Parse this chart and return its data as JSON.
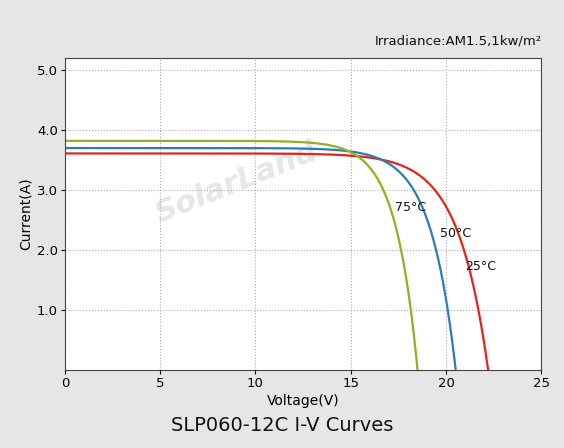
{
  "title": "SLP060-12C I-V Curves",
  "irradiance_label": "Irradiance:AM1.5,1kw/m²",
  "xlabel": "Voltage(V)",
  "ylabel": "Current(A)",
  "xlim": [
    0,
    25
  ],
  "ylim": [
    0,
    5.2
  ],
  "xticks": [
    0,
    5,
    10,
    15,
    20,
    25
  ],
  "yticks": [
    1.0,
    2.0,
    3.0,
    4.0,
    5.0
  ],
  "ytick_top": 5.0,
  "curves": [
    {
      "label": "25°C",
      "color": "#e5231a",
      "isc": 3.61,
      "voc": 22.2,
      "impp": 3.44,
      "vmpp": 17.4
    },
    {
      "label": "50°C",
      "color": "#2a7db5",
      "isc": 3.7,
      "voc": 20.5,
      "impp": 3.52,
      "vmpp": 16.5
    },
    {
      "label": "75°C",
      "color": "#8ab320",
      "isc": 3.82,
      "voc": 18.5,
      "impp": 3.63,
      "vmpp": 15.0
    }
  ],
  "bg_color": "#e6e6e6",
  "plot_bg_color": "#ffffff",
  "grid_color": "#aaaaaa",
  "label_positions": {
    "25°C": [
      21.0,
      1.72
    ],
    "50°C": [
      19.7,
      2.28
    ],
    "75°C": [
      17.3,
      2.7
    ]
  },
  "title_fontsize": 14,
  "axis_label_fontsize": 10,
  "tick_fontsize": 9.5,
  "irradiance_fontsize": 9.5
}
